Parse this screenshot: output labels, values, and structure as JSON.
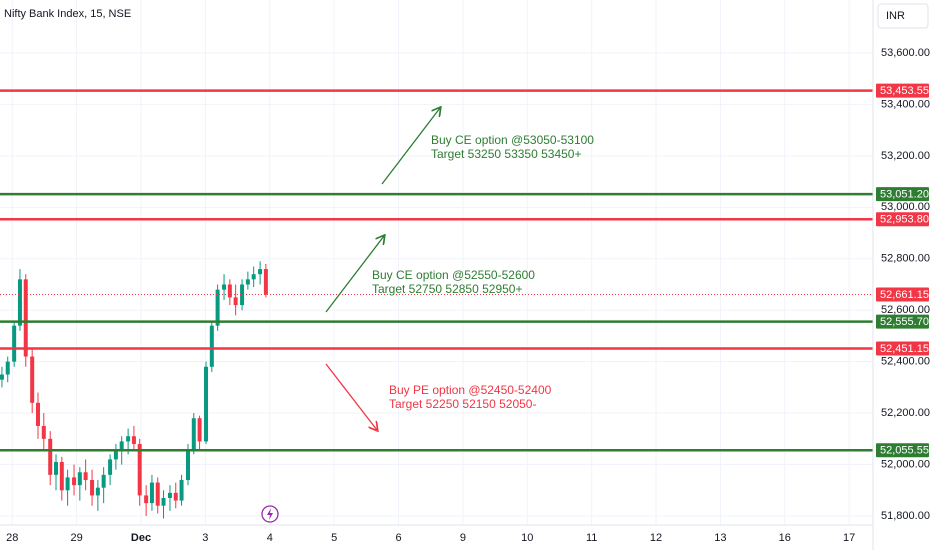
{
  "chart_data": {
    "type": "candlestick",
    "title": "Nifty Bank Index, 15, NSE",
    "currency": "INR",
    "up_color": "#089981",
    "down_color": "#f23645",
    "grid": true,
    "x": [
      -0.16,
      -0.07,
      0.03,
      0.12,
      0.21,
      0.31,
      0.4,
      0.49,
      0.59,
      0.68,
      0.77,
      0.86,
      0.96,
      1.05,
      1.14,
      1.24,
      1.33,
      1.42,
      1.52,
      1.61,
      1.7,
      1.8,
      1.89,
      1.98,
      2.08,
      2.17,
      2.26,
      2.35,
      2.45,
      2.54,
      2.63,
      2.73,
      2.82,
      2.91,
      3.01,
      3.1,
      3.19,
      3.29,
      3.38,
      3.47,
      3.57,
      3.66,
      3.75,
      3.85,
      3.94
    ],
    "open": [
      52330,
      52350,
      52400,
      52540,
      52720,
      52420,
      52240,
      52150,
      52100,
      51960,
      52010,
      51900,
      51950,
      51920,
      51970,
      51940,
      51880,
      51910,
      51960,
      52020,
      52060,
      52090,
      52110,
      52080,
      51880,
      51850,
      51930,
      51840,
      51870,
      51890,
      51860,
      51940,
      52060,
      52180,
      52090,
      52380,
      52540,
      52680,
      52700,
      52650,
      52620,
      52700,
      52720,
      52740,
      52760
    ],
    "high": [
      52380,
      52420,
      52560,
      52760,
      52740,
      52450,
      52280,
      52200,
      52130,
      52040,
      52030,
      51980,
      52000,
      51990,
      52020,
      51980,
      51940,
      51990,
      52040,
      52080,
      52110,
      52140,
      52150,
      52100,
      51920,
      51960,
      51950,
      51900,
      51920,
      51930,
      51960,
      52080,
      52200,
      52190,
      52400,
      52560,
      52700,
      52740,
      52720,
      52700,
      52720,
      52750,
      52770,
      52790,
      52780
    ],
    "low": [
      52300,
      52320,
      52380,
      52520,
      52380,
      52200,
      52100,
      52060,
      51920,
      51900,
      51860,
      51840,
      51880,
      51860,
      51900,
      51840,
      51820,
      51850,
      51920,
      51980,
      52000,
      52040,
      52060,
      51840,
      51800,
      51820,
      51810,
      51790,
      51820,
      51830,
      51840,
      51920,
      52040,
      52060,
      52080,
      52360,
      52520,
      52640,
      52620,
      52580,
      52600,
      52680,
      52690,
      52700,
      52650
    ],
    "close": [
      52350,
      52400,
      52540,
      52720,
      52420,
      52240,
      52150,
      52100,
      51960,
      52010,
      51900,
      51950,
      51920,
      51970,
      51940,
      51880,
      51910,
      51960,
      52020,
      52060,
      52090,
      52110,
      52080,
      51880,
      51850,
      51930,
      51840,
      51870,
      51890,
      51860,
      51940,
      52060,
      52180,
      52090,
      52380,
      52540,
      52680,
      52700,
      52650,
      52620,
      52700,
      52720,
      52740,
      52760,
      52661.15
    ],
    "xlim": [
      -0.19,
      13.37
    ],
    "xticks": [
      {
        "value": 0,
        "label": "28"
      },
      {
        "value": 1,
        "label": "29"
      },
      {
        "value": 2,
        "label": "Dec"
      },
      {
        "value": 3,
        "label": "3"
      },
      {
        "value": 4,
        "label": "4"
      },
      {
        "value": 5,
        "label": "5"
      },
      {
        "value": 6,
        "label": "6"
      },
      {
        "value": 7,
        "label": "9"
      },
      {
        "value": 8,
        "label": "10"
      },
      {
        "value": 9,
        "label": "11"
      },
      {
        "value": 10,
        "label": "12"
      },
      {
        "value": 11,
        "label": "13"
      },
      {
        "value": 12,
        "label": "16"
      },
      {
        "value": 13,
        "label": "17"
      }
    ],
    "ylim": [
      51765,
      53806
    ],
    "yticks": [
      {
        "value": 51800,
        "label": "51,800.00"
      },
      {
        "value": 52000,
        "label": "52,000.00"
      },
      {
        "value": 52200,
        "label": "52,200.00"
      },
      {
        "value": 52400,
        "label": "52,400.00"
      },
      {
        "value": 52600,
        "label": "52,600.00"
      },
      {
        "value": 52800,
        "label": "52,800.00"
      },
      {
        "value": 53000,
        "label": "53,000.00"
      },
      {
        "value": 53200,
        "label": "53,200.00"
      },
      {
        "value": 53400,
        "label": "53,400.00"
      },
      {
        "value": 53600,
        "label": "53,600.00"
      }
    ],
    "levels": [
      {
        "value": 53453.55,
        "label": "53,453.55",
        "color": "#f23645"
      },
      {
        "value": 53051.2,
        "label": "53,051.20",
        "color": "#2e7d32"
      },
      {
        "value": 52953.8,
        "label": "52,953.80",
        "color": "#f23645"
      },
      {
        "value": 52555.7,
        "label": "52,555.70",
        "color": "#2e7d32"
      },
      {
        "value": 52451.15,
        "label": "52,451.15",
        "color": "#f23645"
      },
      {
        "value": 52055.55,
        "label": "52,055.55",
        "color": "#2e7d32"
      }
    ],
    "last_price": {
      "value": 52661.15,
      "label": "52,661.15",
      "color": "#f23645"
    },
    "annotations": [
      {
        "lines": [
          "Buy CE option @53050-53100",
          "Target 53250 53350 53450+"
        ],
        "color": "#2e7d32"
      },
      {
        "lines": [
          "Buy CE option @52550-52600",
          "Target 52750 52850 52950+"
        ],
        "color": "#2e7d32"
      },
      {
        "lines": [
          "Buy PE option @52450-52400",
          "Target 52250 52150 52050-"
        ],
        "color": "#f23645"
      }
    ]
  }
}
